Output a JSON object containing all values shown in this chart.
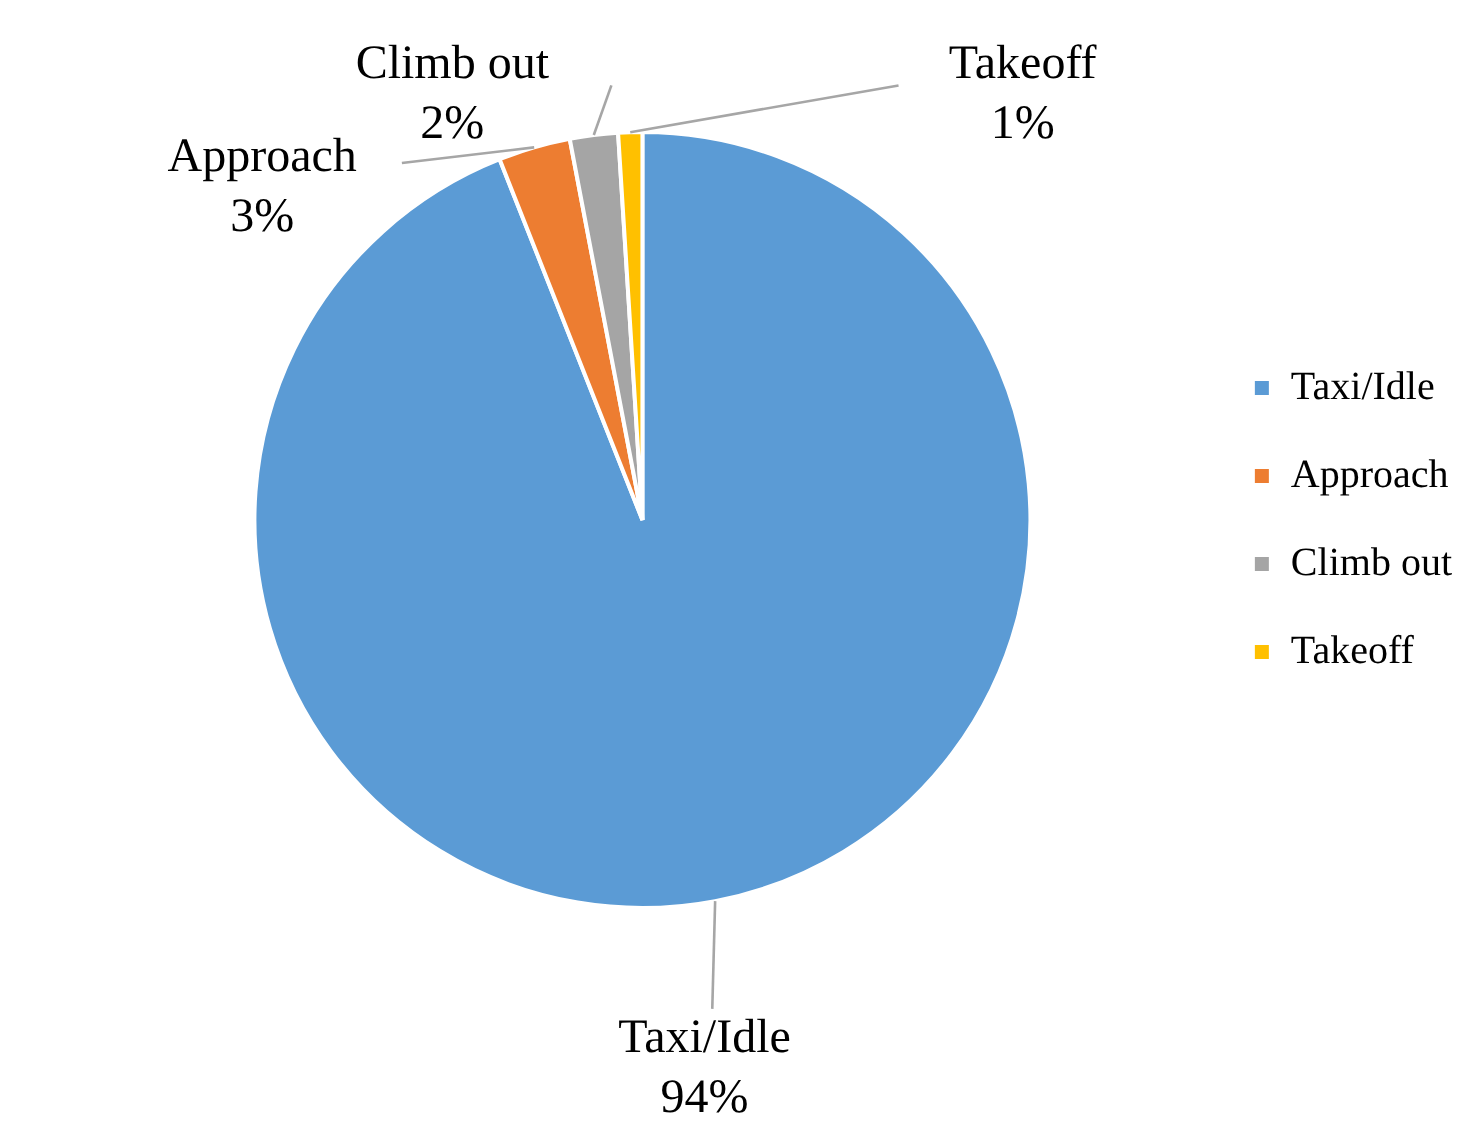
{
  "chart_data": {
    "type": "pie",
    "categories": [
      "Taxi/Idle",
      "Approach",
      "Climb out",
      "Takeoff"
    ],
    "values": [
      94,
      3,
      2,
      1
    ],
    "colors": [
      "#5b9bd5",
      "#ed7d31",
      "#a5a5a5",
      "#ffc000"
    ],
    "value_labels": [
      "94%",
      "3%",
      "2%",
      "1%"
    ],
    "legend": "right"
  }
}
